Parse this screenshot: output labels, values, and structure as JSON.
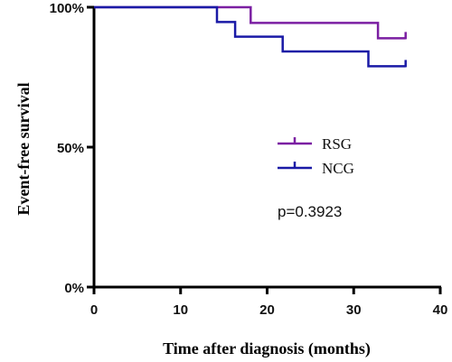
{
  "chart_data": {
    "type": "line",
    "step": true,
    "xlabel": "Time after diagnosis (months)",
    "ylabel": "Event-free  survival",
    "xlim": [
      0,
      40
    ],
    "ylim": [
      0,
      100
    ],
    "x_ticks": [
      "0",
      "10",
      "20",
      "30",
      "40"
    ],
    "y_ticks": [
      {
        "value": 0,
        "label": "0%"
      },
      {
        "value": 50,
        "label": "50%"
      },
      {
        "value": 100,
        "label": "100%"
      }
    ],
    "legend_position": "center-right",
    "series": [
      {
        "name": "RSG",
        "color": "#7b1fa2",
        "points": [
          [
            0,
            100
          ],
          [
            18.1,
            100
          ],
          [
            18.1,
            94.4
          ],
          [
            32.8,
            94.4
          ],
          [
            32.8,
            88.9
          ],
          [
            36,
            88.9
          ]
        ],
        "censored": [
          [
            36,
            88.9
          ]
        ]
      },
      {
        "name": "NCG",
        "color": "#1a1aa6",
        "points": [
          [
            0,
            100
          ],
          [
            14.2,
            100
          ],
          [
            14.2,
            94.7
          ],
          [
            16.3,
            94.7
          ],
          [
            16.3,
            89.5
          ],
          [
            21.8,
            89.5
          ],
          [
            21.8,
            84.2
          ],
          [
            31.7,
            84.2
          ],
          [
            31.7,
            78.9
          ],
          [
            36,
            78.9
          ]
        ],
        "censored": [
          [
            36,
            78.9
          ]
        ]
      }
    ],
    "annotations": [
      "p=0.3923"
    ]
  }
}
